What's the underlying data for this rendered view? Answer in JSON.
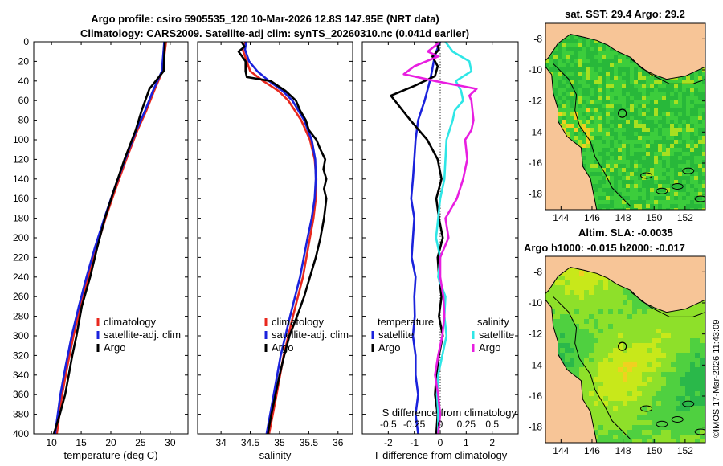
{
  "header": {
    "line1": "Argo profile: csiro 5905535_120 10-Mar-2026 12.8S 147.95E (NRT data)",
    "line2": "Climatology: CARS2009. Satellite-adj clim: synTS_20260310.nc (0.041d earlier)"
  },
  "colors": {
    "climatology": "#e8281e",
    "satellite": "#1a22dc",
    "argo": "#000000",
    "sat_salinity": "#2ee6e6",
    "argo_salinity": "#e81ee0",
    "land": "#f7c597"
  },
  "legend_labels": {
    "climatology": "climatology",
    "satellite_clim": "satellite-adj. clim",
    "argo": "Argo",
    "temperature": "temperature",
    "salinity": "salinity",
    "satellite": "satellite"
  },
  "depth_ticks": [
    "0",
    "20",
    "40",
    "60",
    "80",
    "100",
    "120",
    "140",
    "160",
    "180",
    "200",
    "220",
    "240",
    "260",
    "280",
    "300",
    "320",
    "340",
    "360",
    "380",
    "400"
  ],
  "chart_data": [
    {
      "type": "line",
      "name": "temperature-profile",
      "xlabel": "temperature (deg C)",
      "ylabel": "depth",
      "xlim": [
        7,
        33
      ],
      "ylim": [
        400,
        0
      ],
      "x_ticks": [
        "10",
        "15",
        "20",
        "25",
        "30"
      ],
      "x_tick_values": [
        10,
        15,
        20,
        25,
        30
      ],
      "series": [
        {
          "name": "climatology",
          "depth": [
            0,
            30,
            50,
            70,
            90,
            120,
            150,
            180,
            210,
            240,
            270,
            300,
            330,
            360,
            400
          ],
          "values": [
            29.3,
            28.7,
            27.3,
            26.0,
            24.5,
            22.6,
            20.8,
            19.1,
            17.6,
            16.2,
            14.9,
            13.7,
            12.7,
            11.8,
            10.9
          ]
        },
        {
          "name": "satellite-adj. clim",
          "depth": [
            0,
            30,
            50,
            70,
            90,
            120,
            150,
            180,
            210,
            240,
            270,
            300,
            330,
            360,
            400
          ],
          "values": [
            29.0,
            28.6,
            27.1,
            25.8,
            24.3,
            22.4,
            20.6,
            18.9,
            17.3,
            15.9,
            14.6,
            13.4,
            12.4,
            11.5,
            10.6
          ]
        },
        {
          "name": "Argo",
          "depth": [
            0,
            30,
            48,
            55,
            70,
            90,
            120,
            150,
            180,
            210,
            240,
            270,
            300,
            320,
            340,
            360,
            380,
            400
          ],
          "values": [
            29.1,
            28.9,
            26.5,
            26.1,
            25.2,
            24.2,
            22.3,
            20.6,
            19.0,
            17.7,
            16.5,
            15.1,
            14.2,
            13.5,
            12.9,
            12.3,
            11.4,
            10.4
          ]
        }
      ]
    },
    {
      "type": "line",
      "name": "salinity-profile",
      "xlabel": "salinity",
      "ylabel": "depth",
      "xlim": [
        33.6,
        36.25
      ],
      "ylim": [
        400,
        0
      ],
      "x_ticks": [
        "34",
        "34.5",
        "35",
        "35.5",
        "36"
      ],
      "x_tick_values": [
        34,
        34.5,
        35,
        35.5,
        36
      ],
      "series": [
        {
          "name": "climatology",
          "depth": [
            0,
            8,
            20,
            30,
            40,
            50,
            60,
            80,
            100,
            120,
            140,
            160,
            180,
            200,
            240,
            280,
            320,
            360,
            400
          ],
          "values": [
            34.42,
            34.37,
            34.44,
            34.5,
            34.72,
            34.98,
            35.15,
            35.37,
            35.52,
            35.6,
            35.63,
            35.62,
            35.58,
            35.52,
            35.4,
            35.23,
            35.07,
            34.95,
            34.82
          ]
        },
        {
          "name": "satellite-adj. clim",
          "depth": [
            0,
            8,
            20,
            30,
            40,
            50,
            60,
            80,
            100,
            120,
            140,
            160,
            180,
            200,
            240,
            280,
            320,
            360,
            400
          ],
          "values": [
            34.43,
            34.41,
            34.48,
            34.62,
            34.82,
            35.05,
            35.22,
            35.42,
            35.55,
            35.61,
            35.62,
            35.6,
            35.55,
            35.48,
            35.35,
            35.18,
            35.02,
            34.9,
            34.78
          ]
        },
        {
          "name": "Argo",
          "depth": [
            0,
            5,
            10,
            20,
            30,
            36,
            40,
            50,
            60,
            70,
            80,
            90,
            100,
            110,
            120,
            130,
            140,
            150,
            160,
            170,
            180,
            200,
            220,
            240,
            260,
            280,
            300,
            320,
            340,
            360,
            380,
            400
          ],
          "values": [
            34.35,
            34.4,
            34.3,
            34.42,
            34.42,
            34.44,
            34.85,
            35.1,
            35.28,
            35.35,
            35.45,
            35.5,
            35.63,
            35.7,
            35.78,
            35.75,
            35.8,
            35.76,
            35.8,
            35.78,
            35.76,
            35.7,
            35.62,
            35.52,
            35.42,
            35.3,
            35.17,
            35.08,
            35.0,
            34.93,
            34.86,
            34.8
          ]
        }
      ]
    },
    {
      "type": "line",
      "name": "difference-from-climatology",
      "xlabel": "T difference from climatology",
      "x2label": "S difference from climatology",
      "xlim": [
        -3,
        3
      ],
      "ylim": [
        400,
        0
      ],
      "x_ticks": [
        "-2",
        "-1",
        "0",
        "1",
        "2"
      ],
      "x_tick_values": [
        -2,
        -1,
        0,
        1,
        2
      ],
      "s_ticks": [
        "-0.5",
        "-0.25",
        "0",
        "0.25",
        "0.5"
      ],
      "series": [
        {
          "name": "temperature satellite",
          "depth": [
            0,
            10,
            20,
            30,
            40,
            60,
            80,
            100,
            120,
            140,
            160,
            180,
            200,
            220,
            240,
            260,
            280,
            300,
            320,
            340,
            360,
            380,
            400
          ],
          "values": [
            0.0,
            -0.15,
            -0.25,
            -0.32,
            -0.4,
            -0.6,
            -0.85,
            -0.95,
            -1.0,
            -1.05,
            -1.12,
            -1.0,
            -1.05,
            -1.1,
            -0.95,
            -1.0,
            -0.98,
            -1.05,
            -0.95,
            -0.95,
            -0.85,
            -0.95,
            -0.85
          ]
        },
        {
          "name": "temperature Argo",
          "depth": [
            0,
            8,
            15,
            25,
            35,
            45,
            55,
            65,
            80,
            100,
            120,
            140,
            160,
            180,
            200,
            220,
            240,
            260,
            280,
            300,
            320,
            340,
            360,
            380,
            400
          ],
          "values": [
            -0.15,
            -0.05,
            -0.3,
            -0.1,
            -0.2,
            -1.0,
            -1.9,
            -1.6,
            -1.15,
            -0.5,
            -0.1,
            0.05,
            -0.15,
            -0.05,
            0.1,
            -0.1,
            -0.05,
            0.05,
            -0.05,
            0.1,
            -0.05,
            -0.15,
            -0.2,
            -0.1,
            -0.15
          ]
        },
        {
          "name": "salinity satellite",
          "depth": [
            0,
            10,
            20,
            30,
            40,
            50,
            60,
            70,
            80,
            100,
            120,
            140,
            160,
            180,
            200,
            220,
            240,
            260,
            280,
            300,
            320,
            340,
            360,
            380,
            400
          ],
          "values": [
            0.05,
            0.12,
            0.28,
            0.3,
            0.15,
            0.2,
            0.22,
            0.14,
            0.12,
            0.06,
            0.05,
            0.04,
            0.0,
            -0.02,
            -0.04,
            0.0,
            -0.02,
            0.05,
            0.04,
            0.06,
            0.02,
            -0.02,
            -0.03,
            -0.02,
            -0.02
          ]
        },
        {
          "name": "salinity Argo",
          "depth": [
            0,
            10,
            15,
            25,
            33,
            40,
            48,
            55,
            60,
            80,
            90,
            100,
            120,
            140,
            160,
            180,
            200,
            220,
            240,
            260,
            280,
            300,
            320,
            340,
            360,
            380,
            400
          ],
          "values": [
            0.0,
            -0.12,
            -0.02,
            -0.25,
            -0.35,
            -0.05,
            0.35,
            0.28,
            0.3,
            0.32,
            0.3,
            0.24,
            0.26,
            0.22,
            0.16,
            0.05,
            0.08,
            0.0,
            0.0,
            0.03,
            0.04,
            0.02,
            -0.02,
            -0.05,
            -0.02,
            0.0,
            -0.02
          ]
        }
      ]
    },
    {
      "type": "heatmap",
      "name": "satellite-sst-map",
      "title": "sat. SST: 29.4 Argo: 29.2",
      "xlim": [
        143,
        153.3
      ],
      "ylim": [
        -19,
        -7
      ],
      "x_ticks": [
        "144",
        "146",
        "148",
        "150",
        "152"
      ],
      "x_tick_values": [
        144,
        146,
        148,
        150,
        152
      ],
      "y_ticks": [
        "-8",
        "-10",
        "-12",
        "-14",
        "-16",
        "-18"
      ],
      "y_tick_values": [
        -8,
        -10,
        -12,
        -14,
        -16,
        -18
      ],
      "argo_marker": {
        "lon": 147.95,
        "lat": -12.8
      }
    },
    {
      "type": "heatmap",
      "name": "altimetry-sla-map",
      "title": "Altim. SLA: -0.0035",
      "title2": "Argo h1000: -0.015 h2000: -0.017",
      "xlim": [
        143,
        153.3
      ],
      "ylim": [
        -19,
        -7
      ],
      "x_ticks": [
        "144",
        "146",
        "148",
        "150",
        "152"
      ],
      "x_tick_values": [
        144,
        146,
        148,
        150,
        152
      ],
      "y_ticks": [
        "-8",
        "-10",
        "-12",
        "-14",
        "-16",
        "-18"
      ],
      "y_tick_values": [
        -8,
        -10,
        -12,
        -14,
        -16,
        -18
      ],
      "argo_marker": {
        "lon": 147.95,
        "lat": -12.8
      }
    }
  ],
  "footer": {
    "stamp": "©IMOS 17-Mar-2026 11:43:09"
  }
}
